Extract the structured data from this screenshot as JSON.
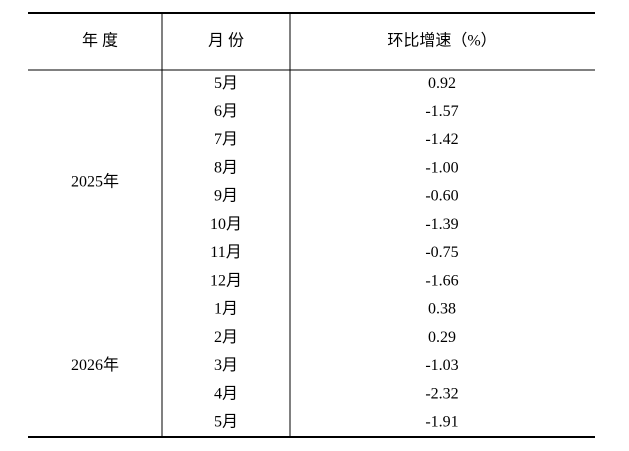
{
  "table": {
    "headers": [
      "年 度",
      "月 份",
      "环比增速（%）"
    ],
    "groups": [
      {
        "year": "2025年",
        "rows": [
          [
            "5月",
            "0.92"
          ],
          [
            "6月",
            "-1.57"
          ],
          [
            "7月",
            "-1.42"
          ],
          [
            "8月",
            "-1.00"
          ],
          [
            "9月",
            "-0.60"
          ],
          [
            "10月",
            "-1.39"
          ],
          [
            "11月",
            "-0.75"
          ],
          [
            "12月",
            "-1.66"
          ]
        ]
      },
      {
        "year": "2026年",
        "rows": [
          [
            "1月",
            "0.38"
          ],
          [
            "2月",
            "0.29"
          ],
          [
            "3月",
            "-1.03"
          ],
          [
            "4月",
            "-2.32"
          ],
          [
            "5月",
            "-1.91"
          ]
        ]
      }
    ]
  }
}
